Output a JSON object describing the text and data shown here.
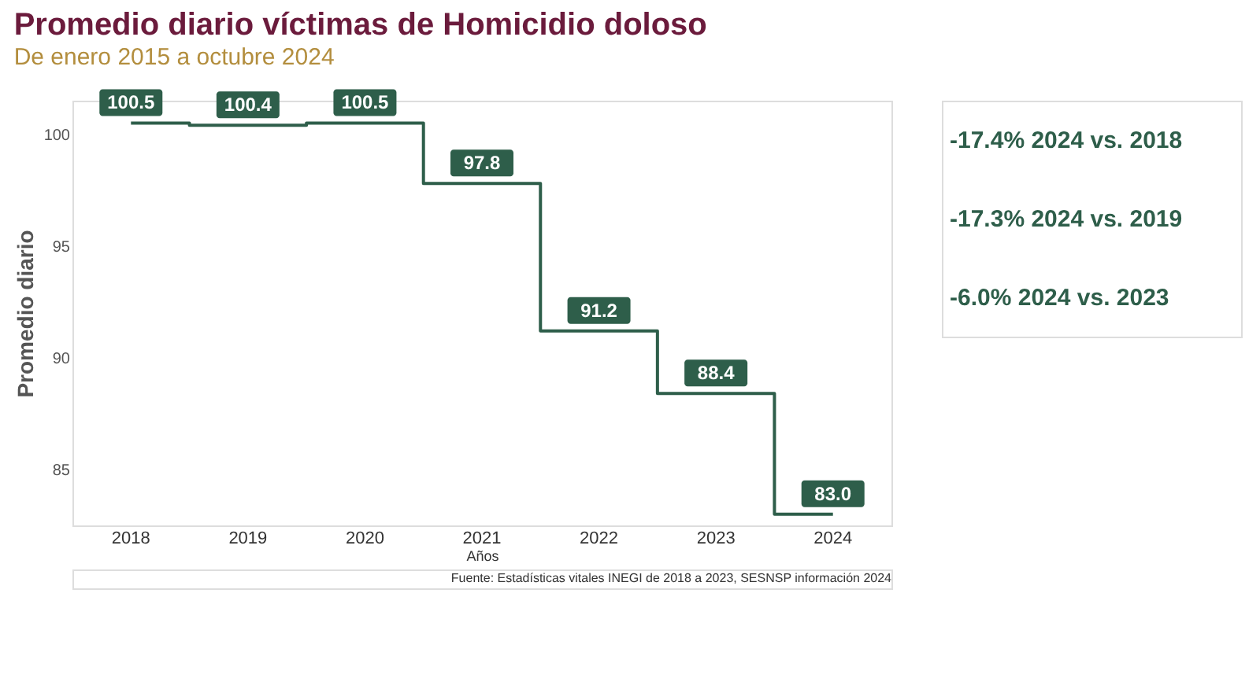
{
  "chart_data": {
    "type": "step",
    "title": "Promedio diario víctimas de Homicidio doloso",
    "subtitle": "De enero 2015 a octubre 2024",
    "xlabel": "Años",
    "ylabel": "Promedio diario",
    "categories": [
      "2018",
      "2019",
      "2020",
      "2021",
      "2022",
      "2023",
      "2024"
    ],
    "series": [
      {
        "color": "#2e5e4a",
        "values": [
          100.5,
          100.4,
          100.5,
          97.8,
          91.2,
          88.4,
          83.0
        ]
      }
    ],
    "value_labels": [
      "100.5",
      "100.4",
      "100.5",
      "97.8",
      "91.2",
      "88.4",
      "83.0"
    ],
    "ylim": [
      82.5,
      101.5
    ],
    "yticks": [
      85,
      90,
      95,
      100
    ],
    "grid": false,
    "marker": "none",
    "line_style": "solid",
    "annotations": [
      "-17.4% 2024 vs. 2018",
      "-17.3% 2024 vs. 2019",
      "-6.0% 2024 vs. 2023",
      "Fuente: Estadísticas vitales INEGI de 2018 a 2023, SESNSP información 2024"
    ]
  }
}
